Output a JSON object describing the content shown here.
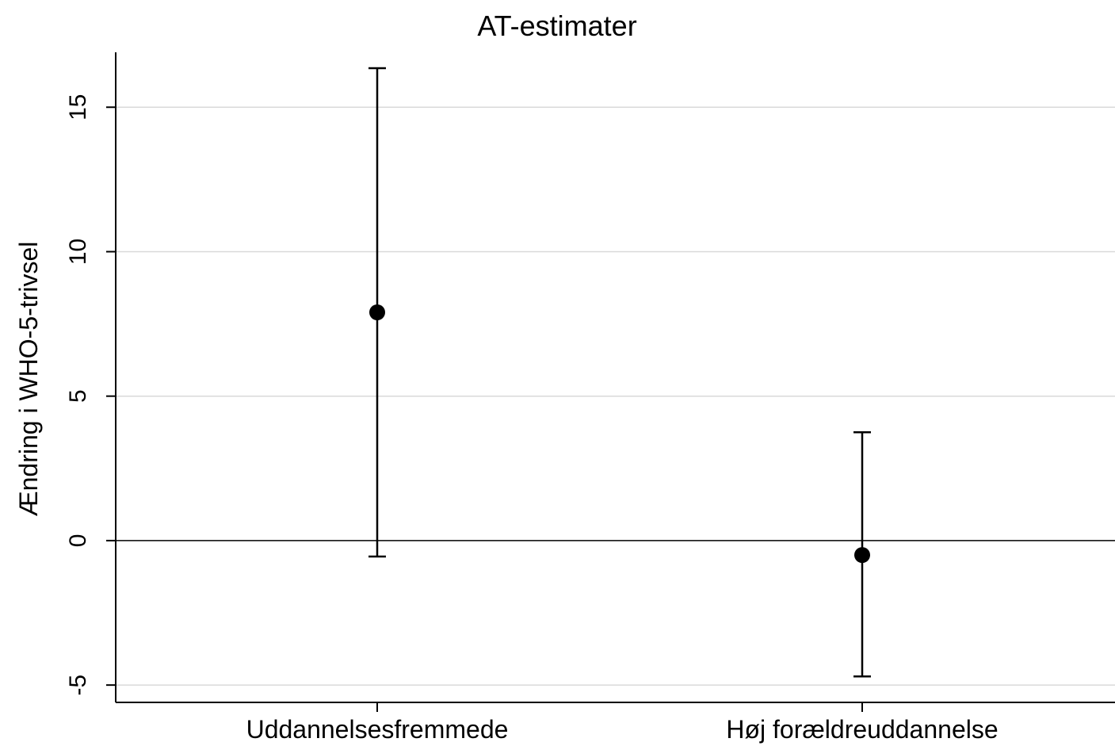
{
  "chart_data": {
    "type": "scatter",
    "title": "AT-estimater",
    "xlabel": "",
    "ylabel": "Ændring i WHO-5-trivsel",
    "ylim": [
      -5.6,
      16.9
    ],
    "yticks": [
      "-5",
      "0",
      "5",
      "10",
      "15"
    ],
    "grid": true,
    "categories": [
      "Uddannelsesfremmede",
      "Høj forældreuddannelse"
    ],
    "points": [
      {
        "category": "Uddannelsesfremmede",
        "estimate": 7.9,
        "ci_low": -0.55,
        "ci_high": 16.35
      },
      {
        "category": "Høj forældreuddannelse",
        "estimate": -0.5,
        "ci_low": -4.7,
        "ci_high": 3.75
      }
    ],
    "reference_line": 0,
    "colors": {
      "marker": "#000000",
      "grid": "#d9d9d9"
    }
  }
}
